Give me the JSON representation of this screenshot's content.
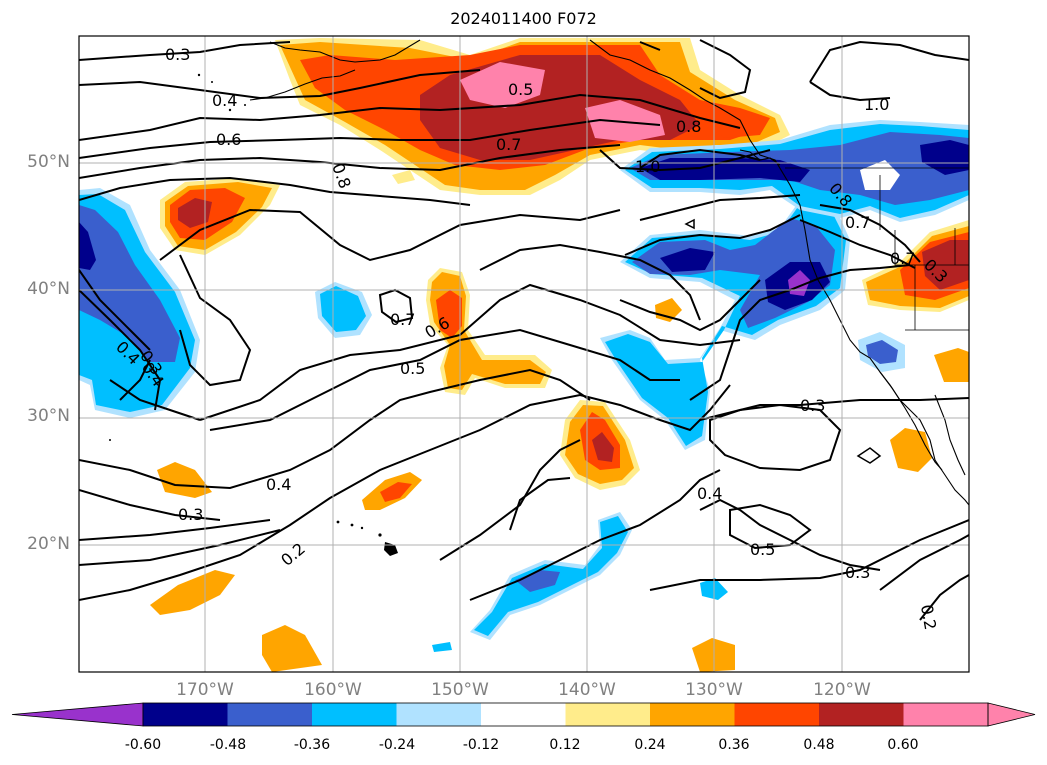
{
  "title": "2024011400 F072",
  "lat_labels": [
    "50°N",
    "40°N",
    "30°N",
    "20°N"
  ],
  "lon_labels": [
    "170°W",
    "160°W",
    "150°W",
    "140°W",
    "130°W",
    "120°W"
  ],
  "contour_labels": [
    "0.3",
    "0.4",
    "0.6",
    "0.5",
    "0.7",
    "0.8",
    "1.0",
    "0.8",
    "0.7",
    "0.7",
    "0.6",
    "0.5",
    "0.3",
    "0.4",
    "0.3",
    "0.4",
    "0.3",
    "0.2",
    "0.4",
    "0.5",
    "0.3",
    "0.2",
    "0.8",
    "0.7",
    "1.0",
    "0.3",
    "0.4"
  ],
  "colorbar": {
    "ticks": [
      "-0.60",
      "-0.48",
      "-0.36",
      "-0.24",
      "-0.12",
      "0.12",
      "0.24",
      "0.36",
      "0.48",
      "0.60"
    ],
    "colors": [
      "#9932cc",
      "#00008b",
      "#3a5fcd",
      "#00bfff",
      "#b0e2ff",
      "#ffffff",
      "#ffec8b",
      "#ffa500",
      "#ff4500",
      "#b22222",
      "#ff82ab",
      "#ff82ab"
    ]
  }
}
